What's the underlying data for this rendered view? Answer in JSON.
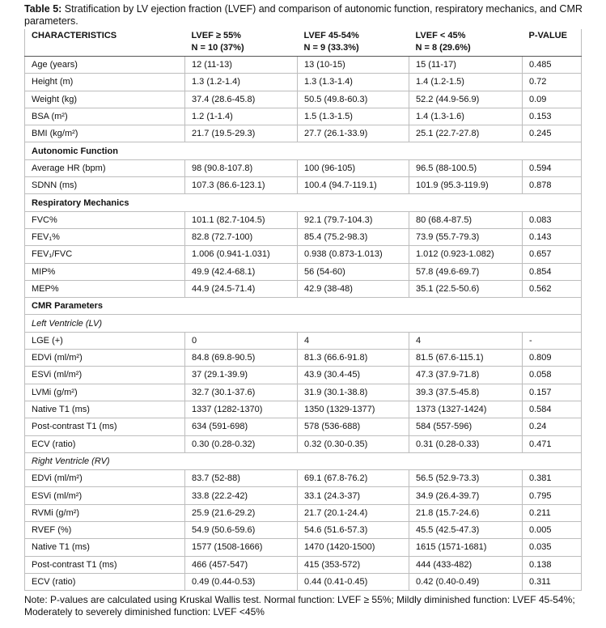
{
  "caption": {
    "label": "Table 5:",
    "text": "Stratification by LV ejection fraction (LVEF) and comparison of autonomic function, respiratory mechanics, and CMR parameters."
  },
  "table": {
    "header": [
      [
        "CHARACTERISTICS"
      ],
      [
        "LVEF ≥ 55%",
        "N = 10 (37%)"
      ],
      [
        "LVEF 45-54%",
        "N = 9 (33.3%)"
      ],
      [
        "LVEF < 45%",
        "N = 8 (29.6%)"
      ],
      [
        "P-VALUE"
      ]
    ],
    "rows": [
      {
        "cells": [
          "Age (years)",
          "12 (11-13)",
          "13 (10-15)",
          "15 (11-17)",
          "0.485"
        ]
      },
      {
        "cells": [
          "Height (m)",
          "1.3 (1.2-1.4)",
          "1.3 (1.3-1.4)",
          "1.4 (1.2-1.5)",
          "0.72"
        ]
      },
      {
        "cells": [
          "Weight (kg)",
          "37.4 (28.6-45.8)",
          "50.5 (49.8-60.3)",
          "52.2 (44.9-56.9)",
          "0.09"
        ]
      },
      {
        "cells": [
          "BSA (m²)",
          "1.2 (1-1.4)",
          "1.5 (1.3-1.5)",
          "1.4 (1.3-1.6)",
          "0.153"
        ]
      },
      {
        "cells": [
          "BMI (kg/m²)",
          "21.7 (19.5-29.3)",
          "27.7 (26.1-33.9)",
          "25.1 (22.7-27.8)",
          "0.245"
        ]
      },
      {
        "section": "Autonomic Function"
      },
      {
        "cells": [
          "Average HR (bpm)",
          "98 (90.8-107.8)",
          "100 (96-105)",
          "96.5 (88-100.5)",
          "0.594"
        ]
      },
      {
        "cells": [
          "SDNN (ms)",
          "107.3 (86.6-123.1)",
          "100.4 (94.7-119.1)",
          "101.9 (95.3-119.9)",
          "0.878"
        ]
      },
      {
        "section": "Respiratory Mechanics"
      },
      {
        "cells": [
          "FVC%",
          "101.1 (82.7-104.5)",
          "92.1 (79.7-104.3)",
          "80 (68.4-87.5)",
          "0.083"
        ]
      },
      {
        "cells": [
          "FEV₁%",
          "82.8 (72.7-100)",
          "85.4 (75.2-98.3)",
          "73.9 (55.7-79.3)",
          "0.143"
        ]
      },
      {
        "cells": [
          "FEV₁/FVC",
          "1.006 (0.941-1.031)",
          "0.938 (0.873-1.013)",
          "1.012 (0.923-1.082)",
          "0.657"
        ]
      },
      {
        "cells": [
          "MIP%",
          "49.9 (42.4-68.1)",
          "56 (54-60)",
          "57.8 (49.6-69.7)",
          "0.854"
        ]
      },
      {
        "cells": [
          "MEP%",
          "44.9 (24.5-71.4)",
          "42.9 (38-48)",
          "35.1 (22.5-50.6)",
          "0.562"
        ]
      },
      {
        "section": "CMR Parameters"
      },
      {
        "subsection": "Left Ventricle (LV)"
      },
      {
        "cells": [
          "LGE (+)",
          "0",
          "4",
          "4",
          "-"
        ]
      },
      {
        "cells": [
          "EDVi (ml/m²)",
          "84.8 (69.8-90.5)",
          "81.3 (66.6-91.8)",
          "81.5 (67.6-115.1)",
          "0.809"
        ]
      },
      {
        "cells": [
          "ESVi (ml/m²)",
          "37 (29.1-39.9)",
          "43.9 (30.4-45)",
          "47.3 (37.9-71.8)",
          "0.058"
        ]
      },
      {
        "cells": [
          "LVMi (g/m²)",
          "32.7 (30.1-37.6)",
          "31.9 (30.1-38.8)",
          "39.3 (37.5-45.8)",
          "0.157"
        ]
      },
      {
        "cells": [
          "Native T1 (ms)",
          "1337 (1282-1370)",
          "1350 (1329-1377)",
          "1373 (1327-1424)",
          "0.584"
        ]
      },
      {
        "cells": [
          "Post-contrast T1 (ms)",
          "634 (591-698)",
          "578 (536-688)",
          "584 (557-596)",
          "0.24"
        ]
      },
      {
        "cells": [
          "ECV (ratio)",
          "0.30 (0.28-0.32)",
          "0.32 (0.30-0.35)",
          "0.31 (0.28-0.33)",
          "0.471"
        ]
      },
      {
        "subsection": "Right Ventricle (RV)"
      },
      {
        "cells": [
          "EDVi (ml/m²)",
          "83.7 (52-88)",
          "69.1 (67.8-76.2)",
          "56.5 (52.9-73.3)",
          "0.381"
        ]
      },
      {
        "cells": [
          "ESVi (ml/m²)",
          "33.8 (22.2-42)",
          "33.1 (24.3-37)",
          "34.9 (26.4-39.7)",
          "0.795"
        ]
      },
      {
        "cells": [
          "RVMi (g/m²)",
          "25.9 (21.6-29.2)",
          "21.7 (20.1-24.4)",
          "21.8 (15.7-24.6)",
          "0.211"
        ]
      },
      {
        "cells": [
          "RVEF (%)",
          "54.9 (50.6-59.6)",
          "54.6 (51.6-57.3)",
          "45.5 (42.5-47.3)",
          "0.005"
        ]
      },
      {
        "cells": [
          "Native T1 (ms)",
          "1577 (1508-1666)",
          "1470 (1420-1500)",
          "1615 (1571-1681)",
          "0.035"
        ]
      },
      {
        "cells": [
          "Post-contrast T1 (ms)",
          "466 (457-547)",
          "415 (353-572)",
          "444 (433-482)",
          "0.138"
        ]
      },
      {
        "cells": [
          "ECV (ratio)",
          "0.49 (0.44-0.53)",
          "0.44 (0.41-0.45)",
          "0.42 (0.40-0.49)",
          "0.311"
        ]
      }
    ]
  },
  "note": "Note: P-values are calculated using Kruskal Wallis test. Normal function: LVEF ≥ 55%; Mildly diminished function: LVEF 45-54%; Moderately to severely diminished function: LVEF <45%"
}
